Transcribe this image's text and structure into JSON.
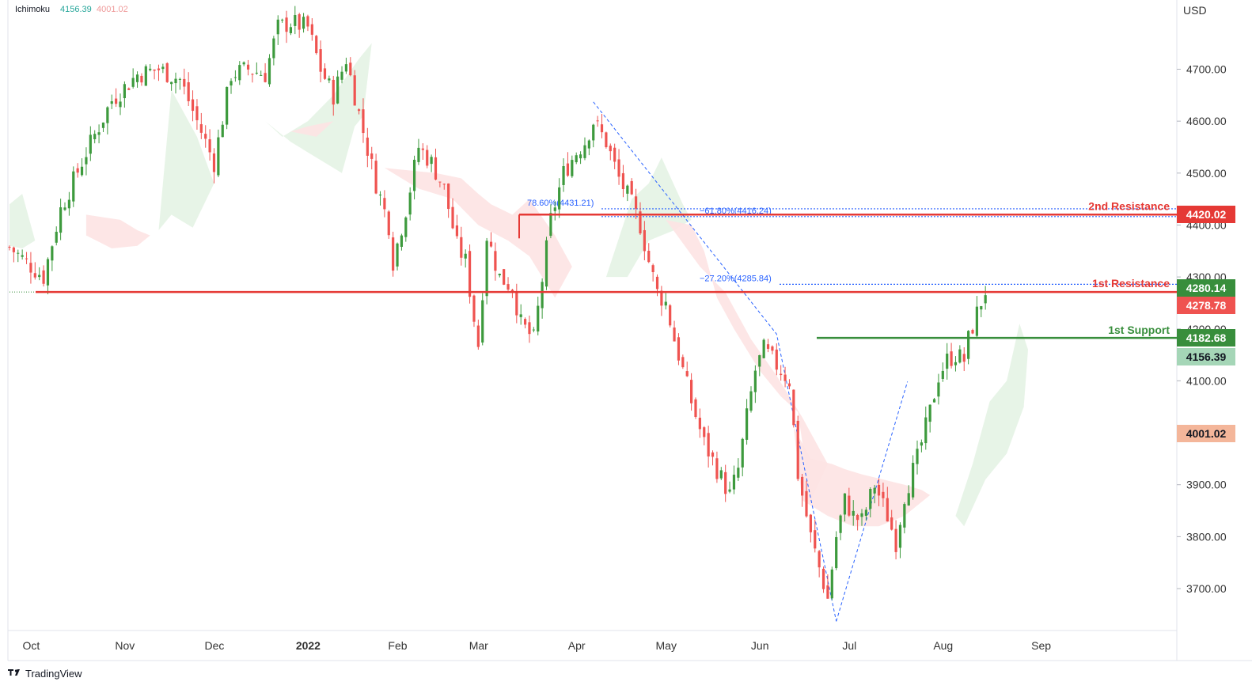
{
  "header": {
    "indicator_name": "Ichimoku",
    "value_a": "4156.39",
    "value_b": "4001.02",
    "currency": "USD"
  },
  "footer": {
    "brand": "TradingView",
    "logo_icon": "tradingview-logo-icon"
  },
  "colors": {
    "up": "#26a69a",
    "candle_up": "#3d9a3d",
    "candle_down": "#ef5350",
    "resistance": "#e53935",
    "support": "#388e3c",
    "fib": "#2962ff",
    "cloud_green": "#e3f2e3",
    "cloud_red": "#fde3e3",
    "value_a": "#26a69a",
    "value_b": "#ef9a9a"
  },
  "chart_data": {
    "type": "candlestick",
    "y_axis": {
      "min": 3620,
      "max": 4880,
      "ticks": [
        3700,
        3800,
        3900,
        4000,
        4100,
        4200,
        4300,
        4400,
        4500,
        4600,
        4700
      ],
      "tick_labels": [
        "3700.00",
        "3800.00",
        "3900.00",
        "4000.00",
        "4100.00",
        "4200.00",
        "4300.00",
        "4400.00",
        "4500.00",
        "4600.00",
        "4700.00"
      ],
      "position": "right"
    },
    "x_axis": {
      "labels": [
        {
          "label": "Oct",
          "t": 1,
          "bold": false
        },
        {
          "label": "Nov",
          "t": 23,
          "bold": false
        },
        {
          "label": "Dec",
          "t": 44,
          "bold": false
        },
        {
          "label": "2022",
          "t": 66,
          "bold": true
        },
        {
          "label": "Feb",
          "t": 87,
          "bold": false
        },
        {
          "label": "Mar",
          "t": 106,
          "bold": false
        },
        {
          "label": "Apr",
          "t": 129,
          "bold": false
        },
        {
          "label": "May",
          "t": 150,
          "bold": false
        },
        {
          "label": "Jun",
          "t": 172,
          "bold": false
        },
        {
          "label": "Jul",
          "t": 193,
          "bold": false
        },
        {
          "label": "Aug",
          "t": 215,
          "bold": false
        },
        {
          "label": "Sep",
          "t": 238,
          "bold": false
        }
      ]
    },
    "close_path": [
      [
        0,
        4357
      ],
      [
        8,
        4300
      ],
      [
        12,
        4430
      ],
      [
        18,
        4540
      ],
      [
        24,
        4640
      ],
      [
        30,
        4690
      ],
      [
        35,
        4700
      ],
      [
        40,
        4680
      ],
      [
        45,
        4580
      ],
      [
        48,
        4520
      ],
      [
        52,
        4690
      ],
      [
        56,
        4700
      ],
      [
        60,
        4690
      ],
      [
        63,
        4780
      ],
      [
        66,
        4790
      ],
      [
        70,
        4780
      ],
      [
        73,
        4700
      ],
      [
        76,
        4650
      ],
      [
        79,
        4720
      ],
      [
        83,
        4580
      ],
      [
        86,
        4480
      ],
      [
        89,
        4400
      ],
      [
        90,
        4330
      ],
      [
        93,
        4430
      ],
      [
        96,
        4550
      ],
      [
        99,
        4520
      ],
      [
        102,
        4470
      ],
      [
        105,
        4360
      ],
      [
        107,
        4330
      ],
      [
        109,
        4220
      ],
      [
        110,
        4170
      ],
      [
        112,
        4380
      ],
      [
        115,
        4300
      ],
      [
        118,
        4280
      ],
      [
        120,
        4210
      ],
      [
        123,
        4180
      ],
      [
        127,
        4410
      ],
      [
        130,
        4500
      ],
      [
        133,
        4540
      ],
      [
        135,
        4560
      ],
      [
        137,
        4600
      ],
      [
        140,
        4560
      ],
      [
        143,
        4490
      ],
      [
        146,
        4440
      ],
      [
        148,
        4400
      ],
      [
        150,
        4330
      ],
      [
        152,
        4270
      ],
      [
        154,
        4250
      ],
      [
        156,
        4180
      ],
      [
        158,
        4120
      ],
      [
        160,
        4060
      ],
      [
        163,
        3980
      ],
      [
        166,
        3930
      ],
      [
        169,
        3880
      ],
      [
        171,
        3930
      ],
      [
        173,
        4030
      ],
      [
        175,
        4120
      ],
      [
        177,
        4160
      ],
      [
        180,
        4130
      ],
      [
        183,
        4100
      ],
      [
        185,
        3920
      ],
      [
        188,
        3800
      ],
      [
        190,
        3740
      ],
      [
        192,
        3680
      ],
      [
        194,
        3800
      ],
      [
        196,
        3870
      ],
      [
        198,
        3840
      ],
      [
        200,
        3830
      ],
      [
        203,
        3900
      ],
      [
        206,
        3840
      ],
      [
        208,
        3790
      ],
      [
        210,
        3880
      ],
      [
        213,
        3950
      ],
      [
        216,
        4040
      ],
      [
        218,
        4110
      ],
      [
        220,
        4140
      ],
      [
        222,
        4150
      ],
      [
        224,
        4140
      ],
      [
        225,
        4180
      ],
      [
        227,
        4230
      ],
      [
        229,
        4274
      ]
    ],
    "levels": [
      {
        "name": "2nd Resistance",
        "value": 4420.02,
        "badge": "4420.02"
      },
      {
        "name": "1st Resistance",
        "value": 4280.14,
        "badge": "4280.14"
      },
      {
        "name": "1st Support",
        "value": 4182.68,
        "badge": "4182.68"
      }
    ],
    "price_badges": [
      {
        "label": "4278.78",
        "value": 4278.78,
        "style": "red"
      },
      {
        "label": "4156.39",
        "value": 4156.39,
        "style": "mint"
      },
      {
        "label": "4001.02",
        "value": 4001.02,
        "style": "peach"
      }
    ],
    "fibonacci": [
      {
        "label": "78.60%(4431.21)",
        "value": 4431.21
      },
      {
        "label": "−61.80%(4416.24)",
        "value": 4416.24
      },
      {
        "label": "−27.20%(4285.84)",
        "value": 4285.84
      }
    ],
    "fib_swing": {
      "t_high": 137,
      "v_high": 4637,
      "t_low": 194,
      "v_low": 3637,
      "t_mid": 180,
      "v_mid": 4190
    },
    "cloud_green": [
      [
        [
          0,
          4440
        ],
        [
          3,
          4460
        ],
        [
          6,
          4370
        ],
        [
          3,
          4355
        ],
        [
          0,
          4360
        ]
      ],
      [
        [
          38,
          4660
        ],
        [
          44,
          4570
        ],
        [
          48,
          4480
        ],
        [
          43,
          4395
        ],
        [
          38,
          4420
        ],
        [
          35,
          4390
        ]
      ],
      [
        [
          60,
          4600
        ],
        [
          66,
          4560
        ],
        [
          72,
          4530
        ],
        [
          78,
          4500
        ],
        [
          81,
          4590
        ],
        [
          83,
          4610
        ],
        [
          85,
          4750
        ],
        [
          82,
          4720
        ],
        [
          76,
          4650
        ],
        [
          70,
          4600
        ],
        [
          64,
          4570
        ]
      ],
      [
        [
          140,
          4300
        ],
        [
          146,
          4450
        ],
        [
          150,
          4480
        ],
        [
          153,
          4530
        ],
        [
          158,
          4440
        ],
        [
          160,
          4410
        ],
        [
          156,
          4390
        ],
        [
          150,
          4370
        ],
        [
          145,
          4300
        ]
      ],
      [
        [
          222,
          3840
        ],
        [
          226,
          3940
        ],
        [
          230,
          4060
        ],
        [
          234,
          4100
        ],
        [
          237,
          4210
        ],
        [
          239,
          4160
        ],
        [
          238,
          4050
        ],
        [
          234,
          3960
        ],
        [
          229,
          3910
        ],
        [
          224,
          3820
        ]
      ]
    ],
    "cloud_red": [
      [
        [
          18,
          4420
        ],
        [
          26,
          4410
        ],
        [
          30,
          4390
        ],
        [
          33,
          4380
        ],
        [
          30,
          4360
        ],
        [
          24,
          4355
        ],
        [
          18,
          4380
        ]
      ],
      [
        [
          66,
          4580
        ],
        [
          72,
          4570
        ],
        [
          76,
          4600
        ],
        [
          70,
          4590
        ]
      ],
      [
        [
          88,
          4510
        ],
        [
          100,
          4500
        ],
        [
          106,
          4490
        ],
        [
          110,
          4460
        ],
        [
          113,
          4440
        ],
        [
          118,
          4420
        ],
        [
          122,
          4450
        ],
        [
          128,
          4380
        ],
        [
          132,
          4320
        ],
        [
          128,
          4260
        ],
        [
          122,
          4340
        ],
        [
          117,
          4370
        ],
        [
          110,
          4400
        ],
        [
          104,
          4450
        ],
        [
          96,
          4470
        ]
      ],
      [
        [
          154,
          4410
        ],
        [
          160,
          4400
        ],
        [
          163,
          4350
        ],
        [
          166,
          4260
        ],
        [
          170,
          4200
        ],
        [
          176,
          4120
        ],
        [
          181,
          4070
        ],
        [
          185,
          4040
        ],
        [
          188,
          3870
        ],
        [
          192,
          3940
        ],
        [
          186,
          4030
        ],
        [
          180,
          4110
        ],
        [
          174,
          4180
        ],
        [
          168,
          4270
        ],
        [
          162,
          4320
        ]
      ],
      [
        [
          184,
          4010
        ],
        [
          188,
          3950
        ],
        [
          193,
          3940
        ],
        [
          196,
          3930
        ],
        [
          200,
          3920
        ],
        [
          205,
          3910
        ],
        [
          210,
          3900
        ],
        [
          214,
          3890
        ],
        [
          216,
          3880
        ],
        [
          210,
          3840
        ],
        [
          204,
          3820
        ],
        [
          198,
          3820
        ],
        [
          192,
          3840
        ],
        [
          186,
          3870
        ]
      ]
    ]
  }
}
